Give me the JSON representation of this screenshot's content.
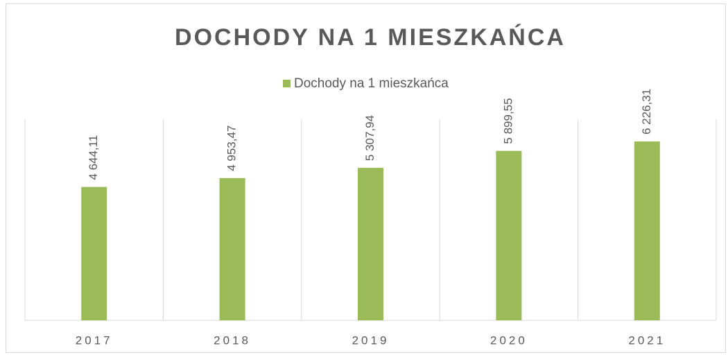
{
  "chart_data": {
    "type": "bar",
    "title": "DOCHODY NA 1 MIESZKAŃCA",
    "categories": [
      "2017",
      "2018",
      "2019",
      "2020",
      "2021"
    ],
    "series": [
      {
        "name": "Dochody na 1 mieszkańca",
        "color": "#9bbb59",
        "values": [
          4644.11,
          4953.47,
          5307.94,
          5899.55,
          6226.31
        ],
        "value_labels": [
          "4 644,11",
          "4 953,47",
          "5 307,94",
          "5 899,55",
          "6 226,31"
        ]
      }
    ],
    "ylim": [
      0,
      7000
    ],
    "legend": "top"
  }
}
